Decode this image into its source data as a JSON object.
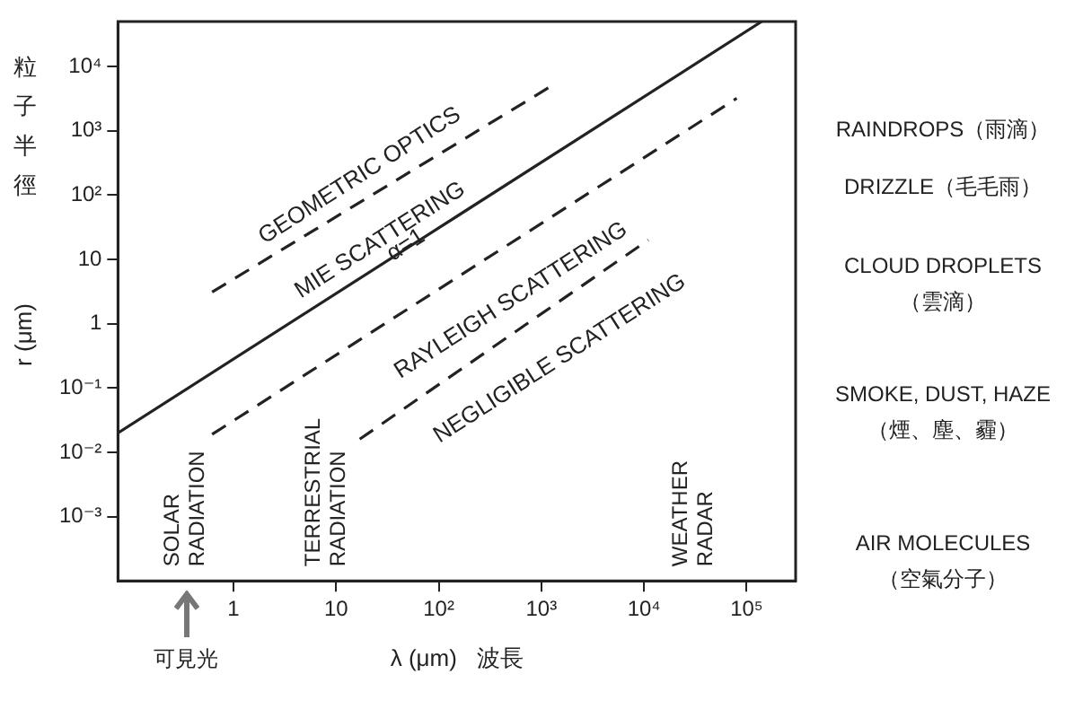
{
  "chart_data": {
    "type": "line",
    "xlabel": "λ (μm)   波長",
    "ylabel": "r (μm)",
    "log": "xy",
    "grid": false,
    "legend": false,
    "marker": "none",
    "xlim": [
      0.075,
      300000
    ],
    "ylim": [
      0.0001,
      50000
    ],
    "xticks": [
      1,
      10,
      {
        "value": 100,
        "label": "10²"
      },
      {
        "value": 1000,
        "label": "10³"
      },
      {
        "value": 10000,
        "label": "10⁴"
      },
      {
        "value": 100000,
        "label": "10⁵"
      }
    ],
    "yticks": [
      {
        "value": 0.001,
        "label": "10⁻³"
      },
      {
        "value": 0.01,
        "label": "10⁻²"
      },
      {
        "value": 0.1,
        "label": "10⁻¹"
      },
      1,
      10,
      {
        "value": 100,
        "label": "10²"
      },
      {
        "value": 1000,
        "label": "10³"
      },
      {
        "value": 10000,
        "label": "10⁴"
      }
    ],
    "series": [
      {
        "color": "#222222",
        "line_style": "solid",
        "x": [
          0.075,
          140000
        ],
        "values": [
          0.02,
          50000
        ]
      },
      {
        "color": "#222222",
        "line_style": "dashed",
        "x": [
          0.62,
          1260
        ],
        "values": [
          3.1,
          5000
        ]
      },
      {
        "color": "#222222",
        "line_style": "dashed",
        "x": [
          0.62,
          80000
        ],
        "values": [
          0.019,
          3200
        ]
      },
      {
        "color": "#222222",
        "line_style": "dashed",
        "x": [
          17,
          11000
        ],
        "values": [
          0.016,
          20
        ]
      }
    ],
    "annotations": [
      "GEOMETRIC OPTICS",
      "MIE SCATTERING",
      "α=1",
      "RAYLEIGH SCATTERING",
      "NEGLIGIBLE SCATTERING",
      "SOLAR\nRADIATION",
      "TERRESTRIAL\nRADIATION",
      "WEATHER\nRADAR",
      "RAINDROPS（雨滴）",
      "DRIZZLE（毛毛雨）",
      "CLOUD DROPLETS\n（雲滴）",
      "SMOKE, DUST, HAZE\n（煙、塵、霾）",
      "AIR MOLECULES\n（空氣分子）",
      "粒子半徑",
      "可見光"
    ]
  }
}
